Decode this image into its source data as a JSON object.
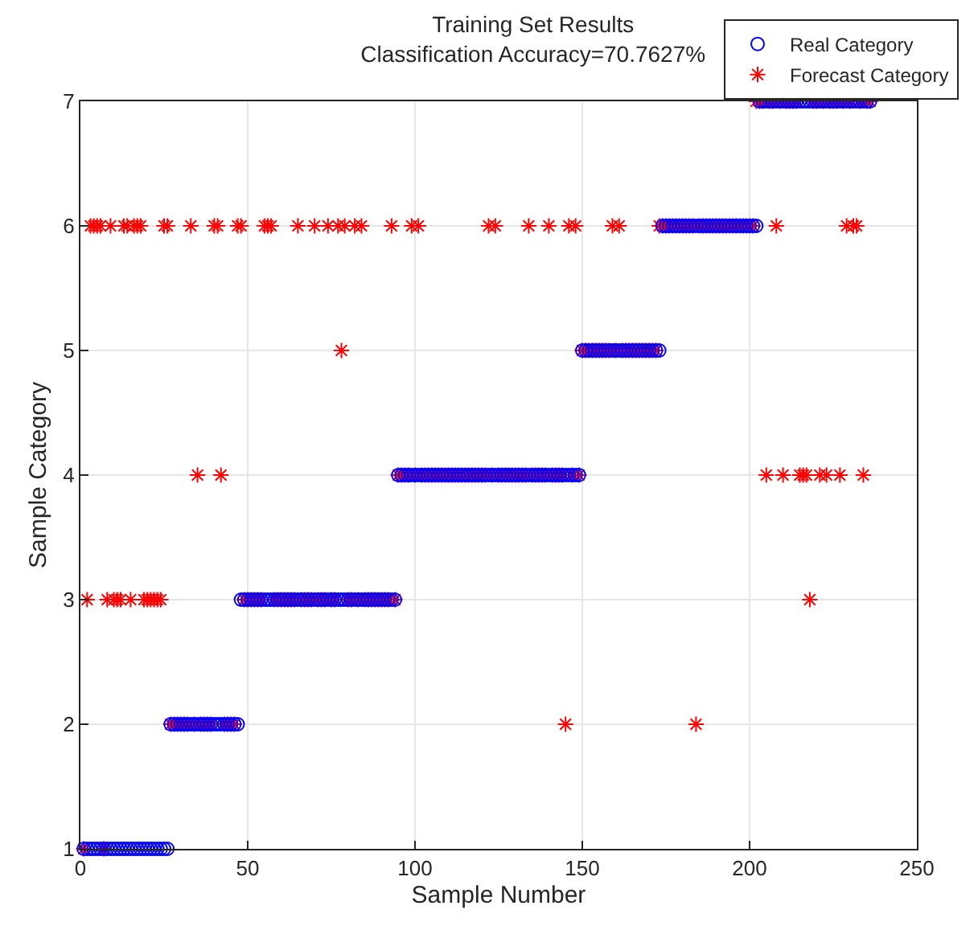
{
  "chart_data": {
    "type": "scatter",
    "title": "Training Set Results",
    "subtitle": "Classification Accuracy=70.7627%",
    "xlabel": "Sample Number",
    "ylabel": "Sample Category",
    "x": [
      1,
      2,
      3,
      4,
      5,
      6,
      7,
      8,
      9,
      10,
      11,
      12,
      13,
      14,
      15,
      16,
      17,
      18,
      19,
      20,
      21,
      22,
      23,
      24,
      25,
      26,
      27,
      28,
      29,
      30,
      31,
      32,
      33,
      34,
      35,
      36,
      37,
      38,
      39,
      40,
      41,
      42,
      43,
      44,
      45,
      46,
      47,
      48,
      49,
      50,
      51,
      52,
      53,
      54,
      55,
      56,
      57,
      58,
      59,
      60,
      61,
      62,
      63,
      64,
      65,
      66,
      67,
      68,
      69,
      70,
      71,
      72,
      73,
      74,
      75,
      76,
      77,
      78,
      79,
      80,
      81,
      82,
      83,
      84,
      85,
      86,
      87,
      88,
      89,
      90,
      91,
      92,
      93,
      94,
      95,
      96,
      97,
      98,
      99,
      100,
      101,
      102,
      103,
      104,
      105,
      106,
      107,
      108,
      109,
      110,
      111,
      112,
      113,
      114,
      115,
      116,
      117,
      118,
      119,
      120,
      121,
      122,
      123,
      124,
      125,
      126,
      127,
      128,
      129,
      130,
      131,
      132,
      133,
      134,
      135,
      136,
      137,
      138,
      139,
      140,
      141,
      142,
      143,
      144,
      145,
      146,
      147,
      148,
      149,
      150,
      151,
      152,
      153,
      154,
      155,
      156,
      157,
      158,
      159,
      160,
      161,
      162,
      163,
      164,
      165,
      166,
      167,
      168,
      169,
      170,
      171,
      172,
      173,
      174,
      175,
      176,
      177,
      178,
      179,
      180,
      181,
      182,
      183,
      184,
      185,
      186,
      187,
      188,
      189,
      190,
      191,
      192,
      193,
      194,
      195,
      196,
      197,
      198,
      199,
      200,
      201,
      202,
      203,
      204,
      205,
      206,
      207,
      208,
      209,
      210,
      211,
      212,
      213,
      214,
      215,
      216,
      217,
      218,
      219,
      220,
      221,
      222,
      223,
      224,
      225,
      226,
      227,
      228,
      229,
      230,
      231,
      232,
      233,
      234,
      235,
      236
    ],
    "series": [
      {
        "name": "Real Category",
        "color": "#0000ff",
        "marker": "circle",
        "values": [
          1,
          1,
          1,
          1,
          1,
          1,
          1,
          1,
          1,
          1,
          1,
          1,
          1,
          1,
          1,
          1,
          1,
          1,
          1,
          1,
          1,
          1,
          1,
          1,
          1,
          1,
          2,
          2,
          2,
          2,
          2,
          2,
          2,
          2,
          2,
          2,
          2,
          2,
          2,
          2,
          2,
          2,
          2,
          2,
          2,
          2,
          2,
          3,
          3,
          3,
          3,
          3,
          3,
          3,
          3,
          3,
          3,
          3,
          3,
          3,
          3,
          3,
          3,
          3,
          3,
          3,
          3,
          3,
          3,
          3,
          3,
          3,
          3,
          3,
          3,
          3,
          3,
          3,
          3,
          3,
          3,
          3,
          3,
          3,
          3,
          3,
          3,
          3,
          3,
          3,
          3,
          3,
          3,
          3,
          4,
          4,
          4,
          4,
          4,
          4,
          4,
          4,
          4,
          4,
          4,
          4,
          4,
          4,
          4,
          4,
          4,
          4,
          4,
          4,
          4,
          4,
          4,
          4,
          4,
          4,
          4,
          4,
          4,
          4,
          4,
          4,
          4,
          4,
          4,
          4,
          4,
          4,
          4,
          4,
          4,
          4,
          4,
          4,
          4,
          4,
          4,
          4,
          4,
          4,
          4,
          4,
          4,
          4,
          4,
          5,
          5,
          5,
          5,
          5,
          5,
          5,
          5,
          5,
          5,
          5,
          5,
          5,
          5,
          5,
          5,
          5,
          5,
          5,
          5,
          5,
          5,
          5,
          5,
          6,
          6,
          6,
          6,
          6,
          6,
          6,
          6,
          6,
          6,
          6,
          6,
          6,
          6,
          6,
          6,
          6,
          6,
          6,
          6,
          6,
          6,
          6,
          6,
          6,
          6,
          6,
          6,
          6,
          7,
          7,
          7,
          7,
          7,
          7,
          7,
          7,
          7,
          7,
          7,
          7,
          7,
          7,
          7,
          7,
          7,
          7,
          7,
          7,
          7,
          7,
          7,
          7,
          7,
          7,
          7,
          7,
          7,
          7,
          7,
          7,
          7,
          7
        ]
      },
      {
        "name": "Forecast Category",
        "color": "#ff0000",
        "marker": "cross",
        "values": [
          1,
          3,
          6,
          6,
          6,
          6,
          1,
          3,
          6,
          3,
          3,
          3,
          6,
          6,
          3,
          6,
          6,
          6,
          3,
          3,
          3,
          3,
          3,
          3,
          6,
          6,
          2,
          2,
          2,
          2,
          2,
          2,
          6,
          2,
          4,
          2,
          2,
          2,
          2,
          6,
          6,
          4,
          2,
          2,
          2,
          2,
          6,
          6,
          3,
          3,
          3,
          3,
          3,
          3,
          6,
          6,
          6,
          3,
          3,
          3,
          3,
          3,
          3,
          3,
          6,
          3,
          3,
          3,
          3,
          6,
          3,
          3,
          3,
          6,
          3,
          3,
          6,
          5,
          6,
          3,
          3,
          6,
          3,
          6,
          3,
          3,
          3,
          3,
          3,
          3,
          3,
          3,
          6,
          3,
          4,
          4,
          4,
          4,
          6,
          4,
          6,
          4,
          4,
          4,
          4,
          4,
          4,
          4,
          4,
          4,
          4,
          4,
          4,
          4,
          4,
          4,
          4,
          4,
          4,
          4,
          4,
          6,
          4,
          6,
          4,
          4,
          4,
          4,
          4,
          4,
          4,
          4,
          4,
          6,
          4,
          4,
          4,
          4,
          4,
          6,
          4,
          4,
          4,
          4,
          2,
          6,
          4,
          6,
          4,
          5,
          5,
          5,
          5,
          5,
          5,
          5,
          5,
          5,
          6,
          5,
          6,
          5,
          5,
          5,
          5,
          5,
          5,
          5,
          5,
          5,
          5,
          5,
          6,
          6,
          6,
          6,
          6,
          6,
          6,
          6,
          6,
          6,
          6,
          2,
          6,
          6,
          6,
          6,
          6,
          6,
          6,
          6,
          6,
          6,
          6,
          6,
          6,
          6,
          6,
          6,
          6,
          7,
          7,
          7,
          4,
          7,
          7,
          6,
          7,
          4,
          7,
          7,
          7,
          7,
          4,
          4,
          4,
          3,
          7,
          7,
          4,
          7,
          4,
          7,
          7,
          7,
          4,
          7,
          6,
          7,
          6,
          6,
          7,
          4,
          7,
          7
        ]
      }
    ],
    "xlim": [
      0,
      250
    ],
    "xticks": [
      0,
      50,
      100,
      150,
      200,
      250
    ],
    "ylim": [
      1,
      7
    ],
    "yticks": [
      1,
      2,
      3,
      4,
      5,
      6,
      7
    ],
    "grid": true,
    "legend": "top right"
  }
}
